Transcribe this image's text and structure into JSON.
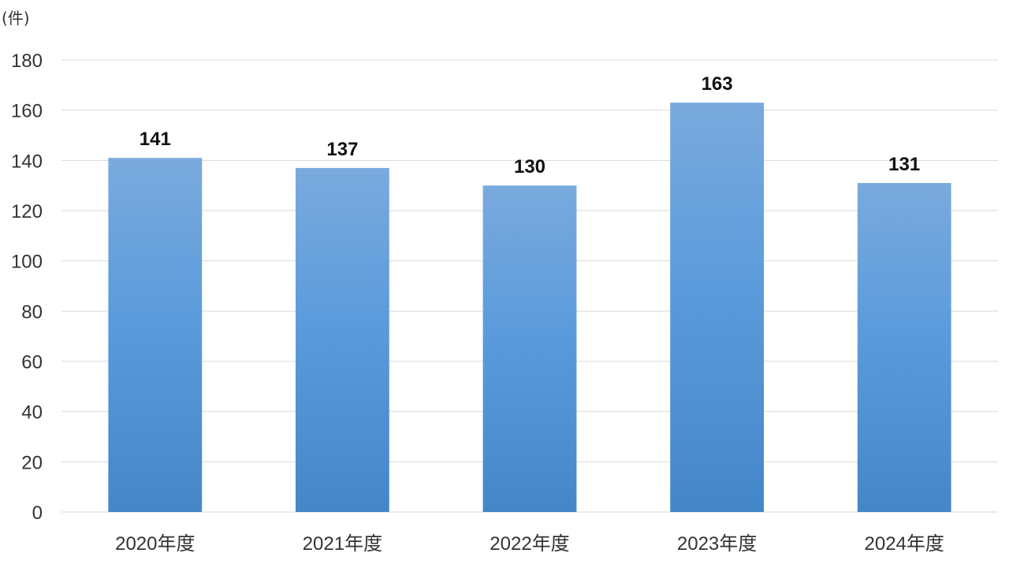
{
  "chart_data": {
    "type": "bar",
    "title": "",
    "xlabel": "",
    "ylabel": "",
    "y_unit_label": "(件)",
    "categories": [
      "2020年度",
      "2021年度",
      "2022年度",
      "2023年度",
      "2024年度"
    ],
    "values": [
      141,
      137,
      130,
      163,
      131
    ],
    "data_labels": [
      "141",
      "137",
      "130",
      "163",
      "131"
    ],
    "y_ticks": [
      "0",
      "20",
      "40",
      "60",
      "80",
      "100",
      "120",
      "140",
      "160",
      "180"
    ],
    "ylim": [
      0,
      180
    ],
    "grid": true,
    "legend": "none",
    "colors": {
      "bar_top": "#7aaadd",
      "bar_mid": "#5b9bdc",
      "bar_bottom": "#4487c8"
    }
  }
}
